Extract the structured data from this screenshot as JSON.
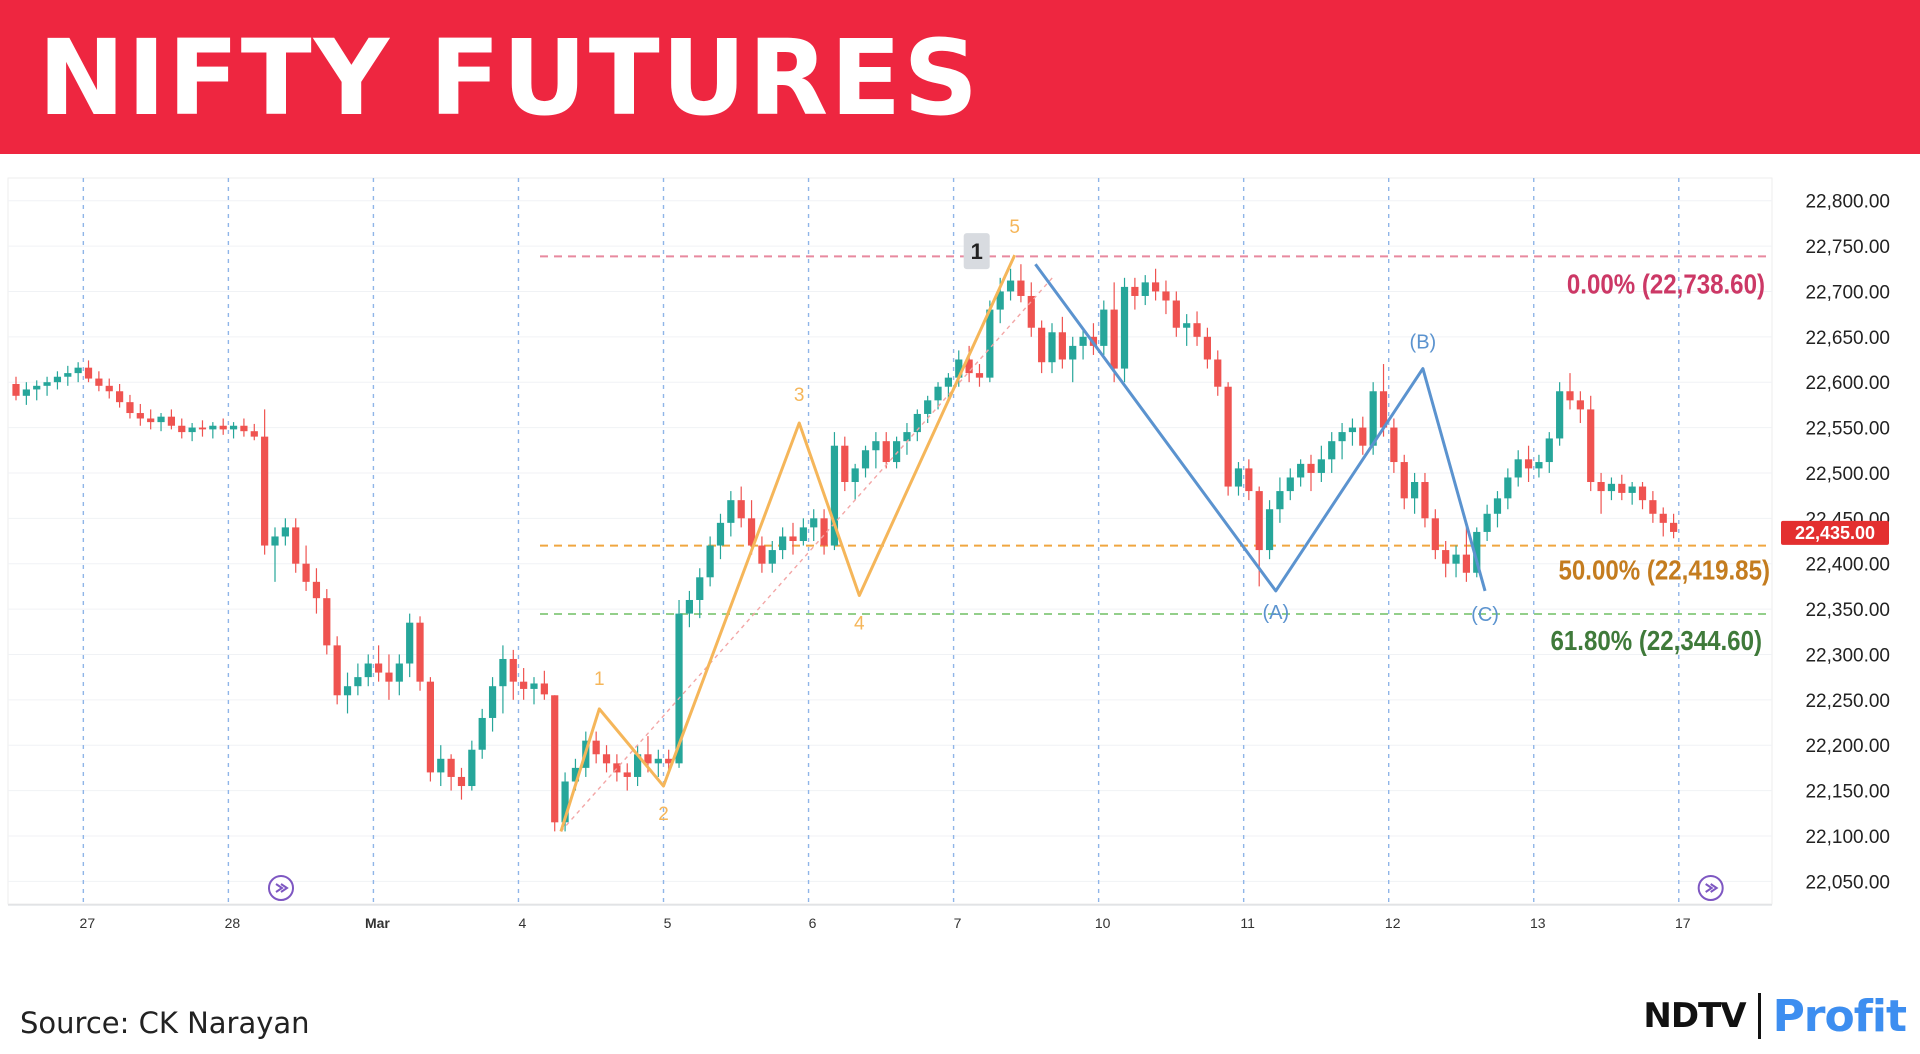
{
  "header": {
    "title": "NIFTY FUTURES"
  },
  "footer": {
    "source": "Source: CK Narayan"
  },
  "logo": {
    "left": "NDTV",
    "right": "Profit"
  },
  "colors": {
    "banner": "#ee2640",
    "up": "#26a69a",
    "down": "#ef5350",
    "wave": "#f5b65a",
    "corrective": "#5b93cf",
    "fib0": "#cc3866",
    "fib50": "#c47c1f",
    "fib618": "#3f7a3a",
    "price_badge": "#e32f2f",
    "event_icon": "#7e57c2"
  },
  "chart_data": {
    "type": "candlestick",
    "title": "NIFTY FUTURES",
    "ylim": [
      22025,
      22825
    ],
    "ytick_labels": [
      "22,800.00",
      "22,750.00",
      "22,700.00",
      "22,650.00",
      "22,600.00",
      "22,550.00",
      "22,500.00",
      "22,450.00",
      "22,400.00",
      "22,350.00",
      "22,300.00",
      "22,250.00",
      "22,200.00",
      "22,150.00",
      "22,100.00",
      "22,050.00"
    ],
    "ytick_values": [
      22800,
      22750,
      22700,
      22650,
      22600,
      22550,
      22500,
      22450,
      22400,
      22350,
      22300,
      22250,
      22200,
      22150,
      22100,
      22050
    ],
    "xtick_labels": [
      "27",
      "28",
      "Mar",
      "4",
      "5",
      "6",
      "7",
      "10",
      "11",
      "12",
      "13",
      "17"
    ],
    "session_start_index": [
      7,
      21,
      35,
      49,
      63,
      77,
      91,
      105,
      119,
      133,
      147,
      161
    ],
    "last_price": "22,435.00",
    "last_price_value": 22435,
    "candles": [
      [
        22598,
        22606,
        22580,
        22585
      ],
      [
        22585,
        22600,
        22575,
        22592
      ],
      [
        22592,
        22602,
        22580,
        22596
      ],
      [
        22596,
        22606,
        22585,
        22600
      ],
      [
        22600,
        22612,
        22592,
        22606
      ],
      [
        22606,
        22618,
        22596,
        22610
      ],
      [
        22610,
        22622,
        22600,
        22616
      ],
      [
        22616,
        22624,
        22600,
        22604
      ],
      [
        22604,
        22612,
        22590,
        22596
      ],
      [
        22596,
        22604,
        22582,
        22590
      ],
      [
        22590,
        22598,
        22572,
        22578
      ],
      [
        22578,
        22586,
        22560,
        22566
      ],
      [
        22566,
        22576,
        22552,
        22560
      ],
      [
        22560,
        22570,
        22548,
        22556
      ],
      [
        22556,
        22566,
        22546,
        22562
      ],
      [
        22562,
        22570,
        22548,
        22552
      ],
      [
        22552,
        22560,
        22538,
        22545
      ],
      [
        22545,
        22555,
        22535,
        22550
      ],
      [
        22550,
        22558,
        22540,
        22548
      ],
      [
        22548,
        22556,
        22538,
        22552
      ],
      [
        22552,
        22560,
        22542,
        22548
      ],
      [
        22548,
        22556,
        22538,
        22552
      ],
      [
        22552,
        22560,
        22540,
        22546
      ],
      [
        22546,
        22554,
        22536,
        22540
      ],
      [
        22540,
        22570,
        22410,
        22420
      ],
      [
        22420,
        22440,
        22380,
        22430
      ],
      [
        22430,
        22450,
        22420,
        22440
      ],
      [
        22440,
        22450,
        22390,
        22400
      ],
      [
        22400,
        22420,
        22370,
        22380
      ],
      [
        22380,
        22395,
        22345,
        22362
      ],
      [
        22362,
        22372,
        22300,
        22310
      ],
      [
        22310,
        22320,
        22245,
        22255
      ],
      [
        22255,
        22280,
        22235,
        22265
      ],
      [
        22265,
        22290,
        22255,
        22275
      ],
      [
        22275,
        22300,
        22265,
        22290
      ],
      [
        22290,
        22310,
        22270,
        22280
      ],
      [
        22280,
        22300,
        22250,
        22270
      ],
      [
        22270,
        22300,
        22255,
        22290
      ],
      [
        22290,
        22345,
        22275,
        22335
      ],
      [
        22335,
        22342,
        22260,
        22270
      ],
      [
        22270,
        22275,
        22160,
        22170
      ],
      [
        22170,
        22200,
        22155,
        22185
      ],
      [
        22185,
        22190,
        22150,
        22165
      ],
      [
        22165,
        22175,
        22140,
        22155
      ],
      [
        22155,
        22205,
        22150,
        22195
      ],
      [
        22195,
        22240,
        22185,
        22230
      ],
      [
        22230,
        22275,
        22215,
        22265
      ],
      [
        22265,
        22310,
        22235,
        22295
      ],
      [
        22295,
        22305,
        22250,
        22270
      ],
      [
        22270,
        22285,
        22250,
        22262
      ],
      [
        22262,
        22275,
        22245,
        22268
      ],
      [
        22268,
        22282,
        22250,
        22256
      ],
      [
        22255,
        22255,
        22105,
        22115
      ],
      [
        22115,
        22170,
        22105,
        22160
      ],
      [
        22160,
        22185,
        22150,
        22175
      ],
      [
        22175,
        22215,
        22165,
        22205
      ],
      [
        22205,
        22215,
        22180,
        22190
      ],
      [
        22190,
        22200,
        22170,
        22180
      ],
      [
        22180,
        22190,
        22160,
        22170
      ],
      [
        22170,
        22180,
        22150,
        22165
      ],
      [
        22165,
        22200,
        22155,
        22190
      ],
      [
        22190,
        22210,
        22170,
        22180
      ],
      [
        22180,
        22195,
        22165,
        22185
      ],
      [
        22185,
        22195,
        22170,
        22180
      ],
      [
        22180,
        22360,
        22175,
        22345
      ],
      [
        22345,
        22370,
        22330,
        22360
      ],
      [
        22360,
        22395,
        22340,
        22385
      ],
      [
        22385,
        22430,
        22375,
        22420
      ],
      [
        22420,
        22455,
        22405,
        22445
      ],
      [
        22445,
        22480,
        22430,
        22470
      ],
      [
        22470,
        22485,
        22440,
        22450
      ],
      [
        22450,
        22470,
        22410,
        22420
      ],
      [
        22420,
        22430,
        22390,
        22400
      ],
      [
        22400,
        22425,
        22390,
        22415
      ],
      [
        22415,
        22440,
        22405,
        22430
      ],
      [
        22430,
        22445,
        22410,
        22425
      ],
      [
        22425,
        22450,
        22420,
        22440
      ],
      [
        22440,
        22460,
        22425,
        22450
      ],
      [
        22450,
        22460,
        22410,
        22420
      ],
      [
        22420,
        22545,
        22415,
        22530
      ],
      [
        22530,
        22540,
        22480,
        22490
      ],
      [
        22490,
        22510,
        22470,
        22505
      ],
      [
        22505,
        22530,
        22495,
        22525
      ],
      [
        22525,
        22545,
        22505,
        22535
      ],
      [
        22535,
        22545,
        22505,
        22512
      ],
      [
        22512,
        22540,
        22505,
        22535
      ],
      [
        22535,
        22555,
        22520,
        22545
      ],
      [
        22545,
        22570,
        22535,
        22565
      ],
      [
        22565,
        22585,
        22555,
        22580
      ],
      [
        22580,
        22600,
        22570,
        22595
      ],
      [
        22595,
        22610,
        22580,
        22605
      ],
      [
        22605,
        22635,
        22595,
        22625
      ],
      [
        22625,
        22640,
        22600,
        22610
      ],
      [
        22610,
        22620,
        22595,
        22605
      ],
      [
        22605,
        22690,
        22600,
        22680
      ],
      [
        22680,
        22715,
        22665,
        22700
      ],
      [
        22700,
        22725,
        22690,
        22712
      ],
      [
        22712,
        22730,
        22688,
        22695
      ],
      [
        22695,
        22710,
        22650,
        22660
      ],
      [
        22660,
        22668,
        22610,
        22622
      ],
      [
        22622,
        22665,
        22610,
        22655
      ],
      [
        22655,
        22672,
        22615,
        22625
      ],
      [
        22625,
        22650,
        22600,
        22640
      ],
      [
        22640,
        22660,
        22625,
        22650
      ],
      [
        22650,
        22665,
        22630,
        22640
      ],
      [
        22640,
        22690,
        22630,
        22680
      ],
      [
        22680,
        22710,
        22600,
        22615
      ],
      [
        22615,
        22715,
        22600,
        22705
      ],
      [
        22705,
        22715,
        22680,
        22695
      ],
      [
        22695,
        22718,
        22685,
        22710
      ],
      [
        22710,
        22725,
        22690,
        22700
      ],
      [
        22700,
        22712,
        22675,
        22690
      ],
      [
        22690,
        22700,
        22650,
        22660
      ],
      [
        22660,
        22675,
        22640,
        22665
      ],
      [
        22665,
        22678,
        22640,
        22650
      ],
      [
        22650,
        22660,
        22615,
        22625
      ],
      [
        22625,
        22635,
        22585,
        22595
      ],
      [
        22595,
        22600,
        22475,
        22485
      ],
      [
        22485,
        22512,
        22475,
        22505
      ],
      [
        22505,
        22515,
        22470,
        22480
      ],
      [
        22480,
        22485,
        22375,
        22415
      ],
      [
        22415,
        22470,
        22405,
        22460
      ],
      [
        22460,
        22495,
        22445,
        22480
      ],
      [
        22480,
        22505,
        22470,
        22495
      ],
      [
        22495,
        22515,
        22485,
        22510
      ],
      [
        22510,
        22520,
        22480,
        22500
      ],
      [
        22500,
        22530,
        22490,
        22515
      ],
      [
        22515,
        22545,
        22500,
        22535
      ],
      [
        22535,
        22555,
        22515,
        22545
      ],
      [
        22545,
        22560,
        22530,
        22550
      ],
      [
        22550,
        22562,
        22520,
        22530
      ],
      [
        22530,
        22600,
        22520,
        22590
      ],
      [
        22590,
        22620,
        22540,
        22550
      ],
      [
        22550,
        22560,
        22500,
        22512
      ],
      [
        22512,
        22520,
        22460,
        22472
      ],
      [
        22472,
        22500,
        22455,
        22490
      ],
      [
        22490,
        22500,
        22440,
        22450
      ],
      [
        22450,
        22460,
        22405,
        22415
      ],
      [
        22415,
        22425,
        22385,
        22400
      ],
      [
        22400,
        22420,
        22385,
        22410
      ],
      [
        22410,
        22440,
        22380,
        22390
      ],
      [
        22390,
        22440,
        22385,
        22435
      ],
      [
        22435,
        22465,
        22425,
        22455
      ],
      [
        22455,
        22480,
        22440,
        22472
      ],
      [
        22472,
        22505,
        22460,
        22495
      ],
      [
        22495,
        22525,
        22485,
        22515
      ],
      [
        22515,
        22530,
        22490,
        22505
      ],
      [
        22505,
        22520,
        22495,
        22512
      ],
      [
        22512,
        22545,
        22500,
        22538
      ],
      [
        22538,
        22600,
        22530,
        22590
      ],
      [
        22590,
        22610,
        22570,
        22580
      ],
      [
        22580,
        22590,
        22555,
        22570
      ],
      [
        22570,
        22585,
        22480,
        22490
      ],
      [
        22490,
        22500,
        22455,
        22480
      ],
      [
        22480,
        22495,
        22470,
        22488
      ],
      [
        22488,
        22498,
        22470,
        22478
      ],
      [
        22478,
        22490,
        22465,
        22485
      ],
      [
        22485,
        22490,
        22460,
        22470
      ],
      [
        22470,
        22480,
        22445,
        22455
      ],
      [
        22455,
        22462,
        22430,
        22445
      ],
      [
        22445,
        22455,
        22428,
        22435
      ]
    ],
    "elliott_impulse": [
      {
        "label": "",
        "index": 52.6,
        "value": 22105
      },
      {
        "label": "1",
        "index": 56.3,
        "value": 22240
      },
      {
        "label": "2",
        "index": 62.5,
        "value": 22155
      },
      {
        "label": "3",
        "index": 75.6,
        "value": 22555
      },
      {
        "label": "4",
        "index": 81.4,
        "value": 22365
      },
      {
        "label": "5",
        "index": 96.4,
        "value": 22740
      }
    ],
    "elliott_corrective": [
      {
        "label": "",
        "index": 98.4,
        "value": 22730
      },
      {
        "label": "(A)",
        "index": 121.6,
        "value": 22370
      },
      {
        "label": "(B)",
        "index": 135.8,
        "value": 22615
      },
      {
        "label": "(C)",
        "index": 141.8,
        "value": 22370
      }
    ],
    "wave_degree_label": "1",
    "fib_levels": [
      {
        "label": "0.00% (22,738.60)",
        "value": 22738.6
      },
      {
        "label": "50.00% (22,419.85)",
        "value": 22419.85
      },
      {
        "label": "61.80% (22,344.60)",
        "value": 22344.6
      }
    ],
    "event_markers": [
      {
        "index": 25
      },
      {
        "index": 163
      }
    ]
  }
}
